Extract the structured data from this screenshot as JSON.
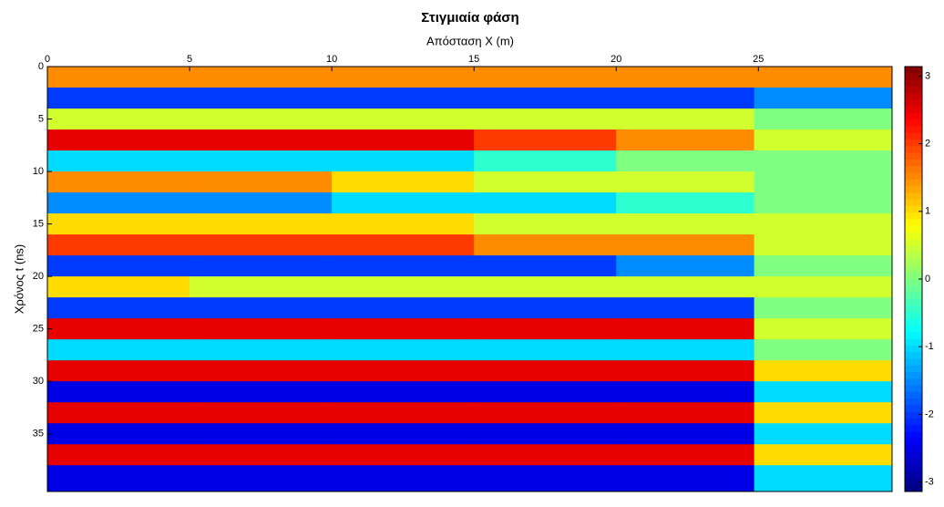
{
  "chart_data": {
    "type": "heatmap",
    "title": "Στιγμιαία φάση",
    "x_label": "Απόσταση X (m)",
    "y_label": "Χρόνος t (ns)",
    "colormap": "jet",
    "x": [
      2.5,
      7.5,
      12.5,
      17.5,
      22.5,
      27.2
    ],
    "y": [
      1,
      3,
      5,
      7,
      9,
      11,
      13,
      15,
      17,
      19,
      21,
      23,
      25,
      27,
      29,
      31,
      33,
      35,
      37,
      39
    ],
    "z": [
      [
        1.5,
        1.5,
        1.5,
        1.5,
        1.5,
        1.5
      ],
      [
        -2,
        -2,
        -2,
        -2,
        -2,
        -1.5
      ],
      [
        0.5,
        0.5,
        0.5,
        0.5,
        0.5,
        0
      ],
      [
        2.5,
        2.5,
        2.5,
        2,
        1.5,
        0.5
      ],
      [
        -1,
        -1,
        -1,
        -0.5,
        0,
        0
      ],
      [
        1.5,
        1.5,
        1,
        0.5,
        0.5,
        0
      ],
      [
        -1.5,
        -1.5,
        -1,
        -1,
        -0.5,
        0
      ],
      [
        1,
        1,
        1,
        0.5,
        0.5,
        0.5
      ],
      [
        2,
        2,
        2,
        1.5,
        1.5,
        0.5
      ],
      [
        -2,
        -2,
        -2,
        -2,
        -1.5,
        0
      ],
      [
        1,
        0.5,
        0.5,
        0.5,
        0.5,
        0.5
      ],
      [
        -2,
        -2,
        -2,
        -2,
        -2,
        0
      ],
      [
        2.5,
        2.5,
        2.5,
        2.5,
        2.5,
        0.5
      ],
      [
        -1,
        -1,
        -1,
        -1,
        -1,
        0
      ],
      [
        2.5,
        2.5,
        2.5,
        2.5,
        2.5,
        1
      ],
      [
        -2.5,
        -2.5,
        -2.5,
        -2.5,
        -2.5,
        -1
      ],
      [
        2.5,
        2.5,
        2.5,
        2.5,
        2.5,
        1
      ],
      [
        -2.5,
        -2.5,
        -2.5,
        -2.5,
        -2.5,
        -1
      ],
      [
        2.5,
        2.5,
        2.5,
        2.5,
        2.5,
        1
      ],
      [
        -2.5,
        -2.5,
        -2.5,
        -2.5,
        -2.5,
        -1
      ]
    ],
    "xlim": [
      0,
      29.7
    ],
    "xticks": [
      0,
      5,
      10,
      15,
      20,
      25
    ],
    "ylim": [
      0,
      40.5
    ],
    "yticks": [
      0,
      5,
      10,
      15,
      20,
      25,
      30,
      35
    ],
    "clim": [
      -3.14,
      3.14
    ],
    "cticks": [
      -3,
      -2,
      -1,
      0,
      1,
      2,
      3
    ]
  }
}
